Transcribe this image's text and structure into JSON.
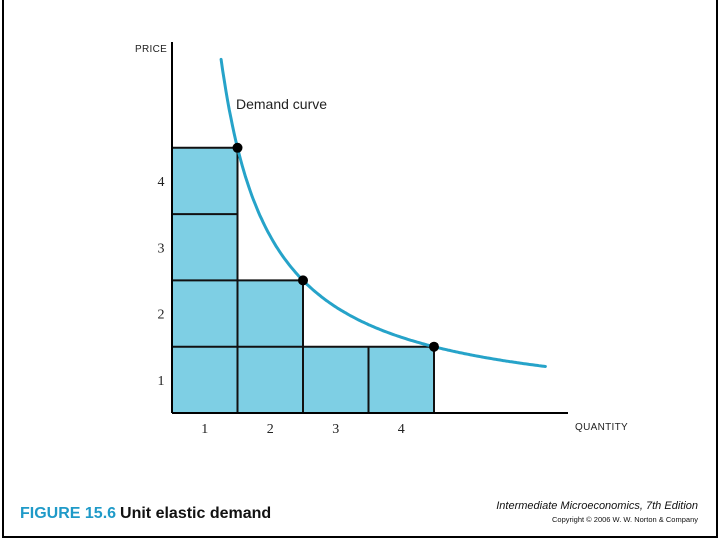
{
  "chart_data": {
    "type": "line",
    "xlabel": "QUANTITY",
    "ylabel": "PRICE",
    "x_ticks": [
      "1",
      "2",
      "3",
      "4"
    ],
    "y_ticks": [
      "1",
      "2",
      "3",
      "4"
    ],
    "xlim": [
      0,
      7
    ],
    "ylim": [
      0,
      5.3
    ],
    "series": [
      {
        "name": "Demand curve",
        "function": "p = 4/q",
        "x_range": [
          0.75,
          5.7
        ]
      }
    ],
    "points": [
      {
        "x": 1,
        "y": 4
      },
      {
        "x": 2,
        "y": 2
      },
      {
        "x": 4,
        "y": 1
      }
    ],
    "revenue_rectangles": [
      {
        "width": 1,
        "height": 4
      },
      {
        "width": 2,
        "height": 2
      },
      {
        "width": 4,
        "height": 1
      }
    ],
    "colors": {
      "curve": "#26a3c9",
      "fill": "#7ecfe4",
      "line": "#111111"
    }
  },
  "caption": {
    "figure_number": "FIGURE 15.6",
    "figure_title": "Unit elastic demand"
  },
  "book": {
    "title": "Intermediate Microeconomics, 7th Edition",
    "copyright": "Copyright © 2006 W. W. Norton & Company"
  }
}
